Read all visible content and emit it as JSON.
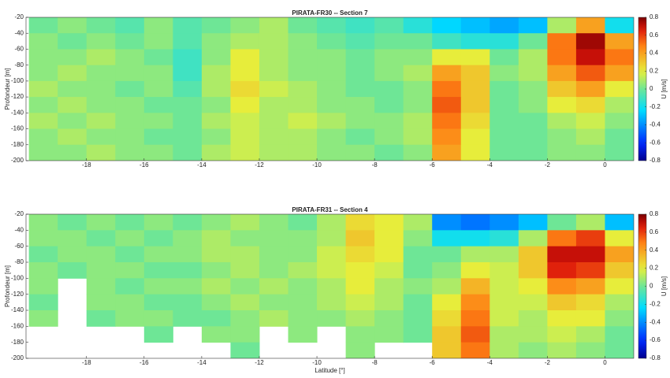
{
  "chart_data": [
    {
      "type": "heatmap",
      "title": "PIRATA-FR30 -- Section 7",
      "ylabel": "Profondeur [m]",
      "colormap": "jet",
      "colorbar": {
        "label": "U [m/s]",
        "clim": [
          -0.8,
          0.8
        ],
        "ticks": [
          0.8,
          0.6,
          0.4,
          0.2,
          0,
          -0.2,
          -0.4,
          -0.6,
          -0.8
        ]
      },
      "xlim": [
        -20.1,
        1.0
      ],
      "ylim": [
        -200,
        -20
      ],
      "xticks": [
        -18,
        -16,
        -14,
        -12,
        -10,
        -8,
        -6,
        -4,
        -2,
        0
      ],
      "yticks": [
        -20,
        -40,
        -60,
        -80,
        -100,
        -120,
        -140,
        -160,
        -180,
        -200
      ],
      "x": [
        -19.5,
        -18.5,
        -17.5,
        -16.5,
        -15.5,
        -14.5,
        -13.5,
        -12.5,
        -11.5,
        -10.5,
        -9.5,
        -8.5,
        -7.5,
        -6.5,
        -5.5,
        -4.5,
        -3.5,
        -2.5,
        -1.5,
        -0.5,
        0.5
      ],
      "y": [
        -30,
        -50,
        -70,
        -90,
        -110,
        -130,
        -150,
        -170,
        -190
      ],
      "z": [
        [
          0.0,
          0.05,
          0.0,
          -0.05,
          0.05,
          -0.05,
          0.0,
          0.05,
          0.1,
          0.0,
          -0.05,
          -0.1,
          -0.05,
          -0.15,
          -0.25,
          -0.3,
          -0.35,
          -0.3,
          0.1,
          0.4,
          -0.2
        ],
        [
          0.05,
          0.0,
          0.05,
          0.0,
          0.05,
          -0.05,
          0.05,
          0.1,
          0.1,
          0.05,
          0.0,
          -0.05,
          0.0,
          0.0,
          -0.1,
          -0.15,
          -0.15,
          0.0,
          0.5,
          0.75,
          0.4
        ],
        [
          0.05,
          0.05,
          0.1,
          0.05,
          0.0,
          -0.1,
          0.05,
          0.2,
          0.1,
          0.05,
          0.05,
          0.0,
          0.05,
          0.05,
          0.2,
          0.2,
          0.0,
          0.1,
          0.5,
          0.7,
          0.5
        ],
        [
          0.05,
          0.1,
          0.05,
          0.05,
          0.05,
          -0.1,
          0.1,
          0.2,
          0.1,
          0.05,
          0.05,
          0.0,
          0.05,
          0.1,
          0.4,
          0.3,
          0.05,
          0.1,
          0.4,
          0.55,
          0.4
        ],
        [
          0.1,
          0.05,
          0.05,
          0.0,
          0.05,
          -0.05,
          0.1,
          0.25,
          0.15,
          0.1,
          0.05,
          0.0,
          0.0,
          0.05,
          0.5,
          0.3,
          0.0,
          0.05,
          0.3,
          0.4,
          0.2
        ],
        [
          0.05,
          0.1,
          0.05,
          0.05,
          0.0,
          0.0,
          0.05,
          0.2,
          0.1,
          0.1,
          0.05,
          0.05,
          0.0,
          0.05,
          0.55,
          0.3,
          0.0,
          0.05,
          0.2,
          0.25,
          0.1
        ],
        [
          0.1,
          0.05,
          0.1,
          0.05,
          0.05,
          0.0,
          0.1,
          0.15,
          0.1,
          0.15,
          0.1,
          0.05,
          0.05,
          0.1,
          0.5,
          0.25,
          0.0,
          0.0,
          0.1,
          0.15,
          0.05
        ],
        [
          0.05,
          0.1,
          0.05,
          0.05,
          0.0,
          0.0,
          0.05,
          0.15,
          0.1,
          0.1,
          0.05,
          0.0,
          0.05,
          0.1,
          0.45,
          0.2,
          0.0,
          0.0,
          0.05,
          0.1,
          0.0
        ],
        [
          0.05,
          0.05,
          0.1,
          0.05,
          0.05,
          0.0,
          0.1,
          0.15,
          0.1,
          0.1,
          0.05,
          0.05,
          0.0,
          0.05,
          0.4,
          0.2,
          0.0,
          0.0,
          0.05,
          0.05,
          0.0
        ]
      ]
    },
    {
      "type": "heatmap",
      "title": "PIRATA-FR31 -- Section 4",
      "ylabel": "Profondeur [m]",
      "xlabel": "Latitude [°]",
      "colormap": "jet",
      "colorbar": {
        "label": "U [m/s]",
        "clim": [
          -0.8,
          0.8
        ],
        "ticks": [
          0.8,
          0.6,
          0.4,
          0.2,
          0,
          -0.2,
          -0.4,
          -0.6,
          -0.8
        ]
      },
      "xlim": [
        -20.1,
        1.0
      ],
      "ylim": [
        -200,
        -20
      ],
      "xticks": [
        -18,
        -16,
        -14,
        -12,
        -10,
        -8,
        -6,
        -4,
        -2,
        0
      ],
      "yticks": [
        -20,
        -40,
        -60,
        -80,
        -100,
        -120,
        -140,
        -160,
        -180,
        -200
      ],
      "x": [
        -19.5,
        -18.5,
        -17.5,
        -16.5,
        -15.5,
        -14.5,
        -13.5,
        -12.5,
        -11.5,
        -10.5,
        -9.5,
        -8.5,
        -7.5,
        -6.5,
        -5.5,
        -4.5,
        -3.5,
        -2.5,
        -1.5,
        -0.5,
        0.5
      ],
      "y": [
        -30,
        -50,
        -70,
        -90,
        -110,
        -130,
        -150,
        -170,
        -190
      ],
      "z": [
        [
          0.05,
          0.0,
          0.05,
          0.0,
          0.05,
          0.0,
          0.05,
          0.1,
          0.05,
          0.0,
          0.1,
          0.25,
          0.2,
          0.1,
          -0.4,
          -0.45,
          -0.4,
          -0.3,
          0.0,
          0.1,
          -0.3
        ],
        [
          0.05,
          0.05,
          0.0,
          0.05,
          0.0,
          0.05,
          0.1,
          0.05,
          0.05,
          0.05,
          0.1,
          0.3,
          0.2,
          0.05,
          -0.2,
          -0.2,
          -0.15,
          0.1,
          0.5,
          0.6,
          0.2
        ],
        [
          0.0,
          0.05,
          0.05,
          0.0,
          0.05,
          0.05,
          0.1,
          0.1,
          0.05,
          0.05,
          0.15,
          0.25,
          0.2,
          0.0,
          0.0,
          0.1,
          0.1,
          0.3,
          0.7,
          0.7,
          0.4
        ],
        [
          0.05,
          0.0,
          0.05,
          0.05,
          0.0,
          0.0,
          0.05,
          0.1,
          0.05,
          0.1,
          0.15,
          0.2,
          0.15,
          0.0,
          0.05,
          0.2,
          0.15,
          0.3,
          0.65,
          0.6,
          0.3
        ],
        [
          0.05,
          null,
          0.05,
          0.0,
          0.05,
          0.05,
          0.1,
          0.05,
          0.1,
          0.05,
          0.1,
          0.2,
          0.1,
          0.05,
          0.1,
          0.35,
          0.15,
          0.2,
          0.45,
          0.4,
          0.2
        ],
        [
          0.0,
          null,
          0.05,
          0.05,
          0.0,
          0.0,
          0.05,
          0.1,
          0.05,
          0.05,
          0.1,
          0.15,
          0.1,
          0.0,
          0.2,
          0.45,
          0.15,
          0.15,
          0.3,
          0.25,
          0.1
        ],
        [
          0.05,
          null,
          0.0,
          0.05,
          0.05,
          0.0,
          0.0,
          0.05,
          0.1,
          0.05,
          0.05,
          0.1,
          0.05,
          0.0,
          0.25,
          0.5,
          0.15,
          0.1,
          0.2,
          0.2,
          0.05
        ],
        [
          null,
          null,
          null,
          null,
          0.0,
          null,
          0.05,
          0.05,
          null,
          0.05,
          null,
          0.05,
          0.05,
          0.0,
          0.3,
          0.55,
          0.1,
          0.1,
          0.15,
          0.1,
          0.0
        ],
        [
          null,
          null,
          null,
          null,
          null,
          null,
          null,
          0.0,
          null,
          null,
          null,
          0.05,
          null,
          null,
          0.3,
          0.5,
          0.1,
          0.05,
          0.1,
          0.05,
          0.0
        ]
      ]
    }
  ]
}
